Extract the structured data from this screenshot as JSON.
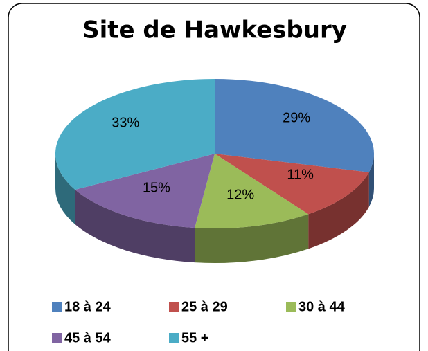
{
  "chart_data": {
    "type": "pie3d",
    "title": "Site de Hawkesbury",
    "categories": [
      "18 à 24",
      "25 à 29",
      "30 à 44",
      "45 à 54",
      "55 +"
    ],
    "values": [
      29,
      11,
      12,
      15,
      33
    ],
    "value_labels": [
      "29%",
      "11%",
      "12%",
      "15%",
      "33%"
    ],
    "colors": [
      "#4f81bd",
      "#c0504d",
      "#9bbb59",
      "#8064a2",
      "#4bacc6"
    ],
    "legend": "bottom"
  }
}
